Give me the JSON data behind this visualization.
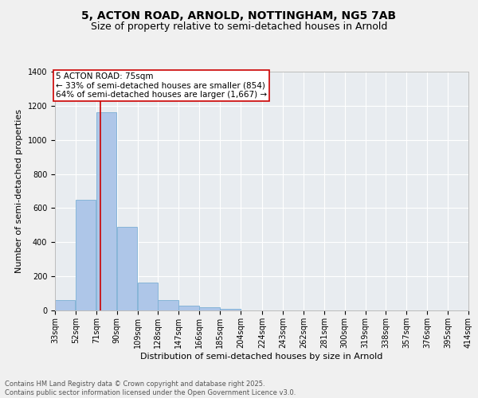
{
  "title_line1": "5, ACTON ROAD, ARNOLD, NOTTINGHAM, NG5 7AB",
  "title_line2": "Size of property relative to semi-detached houses in Arnold",
  "xlabel": "Distribution of semi-detached houses by size in Arnold",
  "ylabel": "Number of semi-detached properties",
  "bar_color": "#aec6e8",
  "bar_edge_color": "#7bafd4",
  "background_color": "#e8ecf0",
  "grid_color": "#ffffff",
  "fig_background": "#f0f0f0",
  "bins": [
    33,
    52,
    71,
    90,
    109,
    128,
    147,
    166,
    185,
    204,
    224,
    243,
    262,
    281,
    300,
    319,
    338,
    357,
    376,
    395,
    414
  ],
  "counts": [
    60,
    648,
    1163,
    491,
    163,
    63,
    30,
    20,
    11,
    0,
    0,
    0,
    0,
    0,
    0,
    0,
    0,
    0,
    0,
    0
  ],
  "tick_labels": [
    "33sqm",
    "52sqm",
    "71sqm",
    "90sqm",
    "109sqm",
    "128sqm",
    "147sqm",
    "166sqm",
    "185sqm",
    "204sqm",
    "224sqm",
    "243sqm",
    "262sqm",
    "281sqm",
    "300sqm",
    "319sqm",
    "338sqm",
    "357sqm",
    "376sqm",
    "395sqm",
    "414sqm"
  ],
  "annotation_line1": "5 ACTON ROAD: 75sqm",
  "annotation_line2": "← 33% of semi-detached houses are smaller (854)",
  "annotation_line3": "64% of semi-detached houses are larger (1,667) →",
  "vline_color": "#cc0000",
  "vline_x": 75,
  "ylim": [
    0,
    1400
  ],
  "yticks": [
    0,
    200,
    400,
    600,
    800,
    1000,
    1200,
    1400
  ],
  "footer_line1": "Contains HM Land Registry data © Crown copyright and database right 2025.",
  "footer_line2": "Contains public sector information licensed under the Open Government Licence v3.0.",
  "title_fontsize": 10,
  "subtitle_fontsize": 9,
  "axis_label_fontsize": 8,
  "tick_fontsize": 7,
  "annotation_fontsize": 7.5
}
